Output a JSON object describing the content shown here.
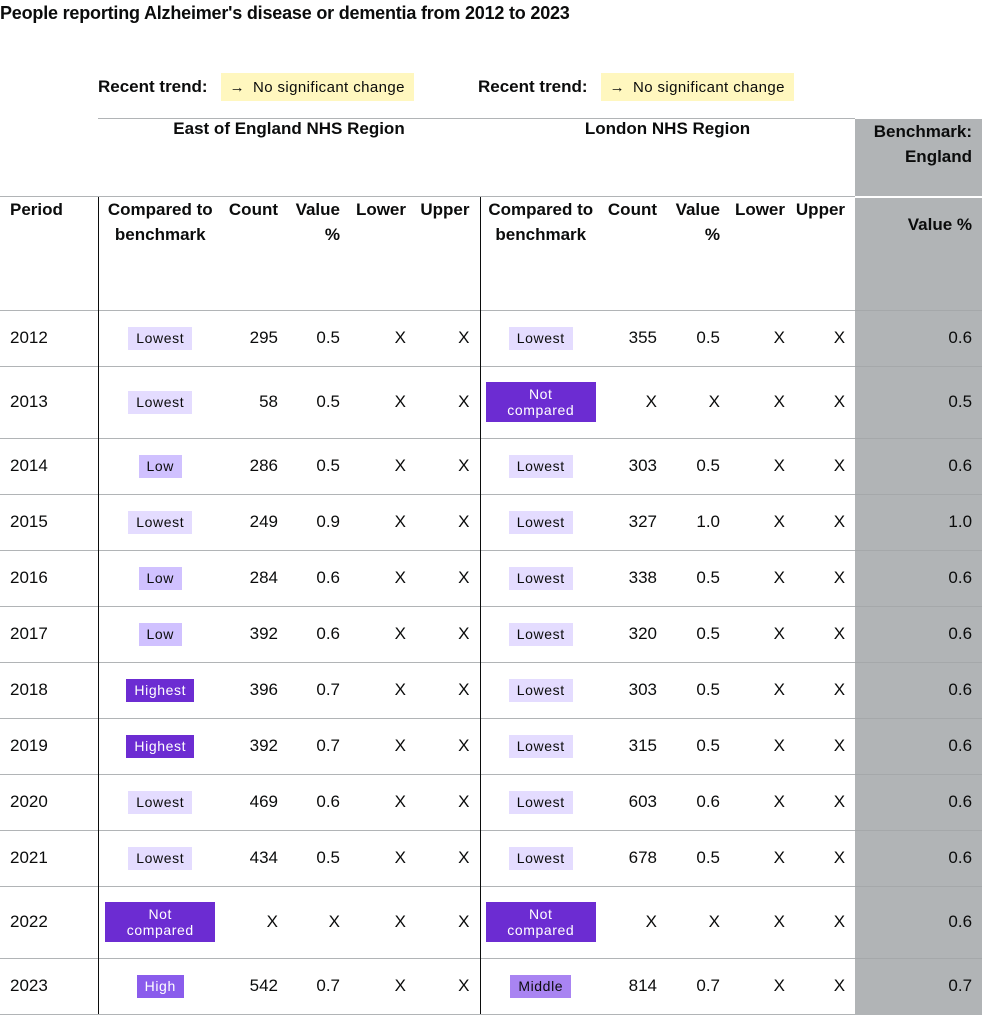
{
  "title": "People reporting Alzheimer's disease or dementia from 2012 to 2023",
  "trends": [
    {
      "label": "Recent trend:",
      "icon": "arrow-right-icon",
      "arrow": "→",
      "value": "No significant change"
    },
    {
      "label": "Recent trend:",
      "icon": "arrow-right-icon",
      "arrow": "→",
      "value": "No significant change"
    }
  ],
  "table": {
    "regions": [
      "East of England NHS Region",
      "London NHS Region"
    ],
    "benchmark_header": "Benchmark: England",
    "columns": {
      "period": "Period",
      "compared": "Compared to benchmark",
      "count": "Count",
      "value": "Value %",
      "lower": "Lower",
      "upper": "Upper",
      "bench_value": "Value %"
    },
    "badge_colors": {
      "Lowest": "#e4dcff",
      "Low": "#d0c1ff",
      "Middle": "#a984f2",
      "High": "#8a5cec",
      "Highest": "#6c2cd2",
      "Not compared": "#6c2cd2"
    },
    "rows": [
      {
        "period": "2012",
        "east": {
          "compared": "Lowest",
          "count": "295",
          "value": "0.5",
          "lower": "X",
          "upper": "X"
        },
        "london": {
          "compared": "Lowest",
          "count": "355",
          "value": "0.5",
          "lower": "X",
          "upper": "X"
        },
        "benchmark": "0.6"
      },
      {
        "period": "2013",
        "east": {
          "compared": "Lowest",
          "count": "58",
          "value": "0.5",
          "lower": "X",
          "upper": "X"
        },
        "london": {
          "compared": "Not compared",
          "count": "X",
          "value": "X",
          "lower": "X",
          "upper": "X"
        },
        "benchmark": "0.5"
      },
      {
        "period": "2014",
        "east": {
          "compared": "Low",
          "count": "286",
          "value": "0.5",
          "lower": "X",
          "upper": "X"
        },
        "london": {
          "compared": "Lowest",
          "count": "303",
          "value": "0.5",
          "lower": "X",
          "upper": "X"
        },
        "benchmark": "0.6"
      },
      {
        "period": "2015",
        "east": {
          "compared": "Lowest",
          "count": "249",
          "value": "0.9",
          "lower": "X",
          "upper": "X"
        },
        "london": {
          "compared": "Lowest",
          "count": "327",
          "value": "1.0",
          "lower": "X",
          "upper": "X"
        },
        "benchmark": "1.0"
      },
      {
        "period": "2016",
        "east": {
          "compared": "Low",
          "count": "284",
          "value": "0.6",
          "lower": "X",
          "upper": "X"
        },
        "london": {
          "compared": "Lowest",
          "count": "338",
          "value": "0.5",
          "lower": "X",
          "upper": "X"
        },
        "benchmark": "0.6"
      },
      {
        "period": "2017",
        "east": {
          "compared": "Low",
          "count": "392",
          "value": "0.6",
          "lower": "X",
          "upper": "X"
        },
        "london": {
          "compared": "Lowest",
          "count": "320",
          "value": "0.5",
          "lower": "X",
          "upper": "X"
        },
        "benchmark": "0.6"
      },
      {
        "period": "2018",
        "east": {
          "compared": "Highest",
          "count": "396",
          "value": "0.7",
          "lower": "X",
          "upper": "X"
        },
        "london": {
          "compared": "Lowest",
          "count": "303",
          "value": "0.5",
          "lower": "X",
          "upper": "X"
        },
        "benchmark": "0.6"
      },
      {
        "period": "2019",
        "east": {
          "compared": "Highest",
          "count": "392",
          "value": "0.7",
          "lower": "X",
          "upper": "X"
        },
        "london": {
          "compared": "Lowest",
          "count": "315",
          "value": "0.5",
          "lower": "X",
          "upper": "X"
        },
        "benchmark": "0.6"
      },
      {
        "period": "2020",
        "east": {
          "compared": "Lowest",
          "count": "469",
          "value": "0.6",
          "lower": "X",
          "upper": "X"
        },
        "london": {
          "compared": "Lowest",
          "count": "603",
          "value": "0.6",
          "lower": "X",
          "upper": "X"
        },
        "benchmark": "0.6"
      },
      {
        "period": "2021",
        "east": {
          "compared": "Lowest",
          "count": "434",
          "value": "0.5",
          "lower": "X",
          "upper": "X"
        },
        "london": {
          "compared": "Lowest",
          "count": "678",
          "value": "0.5",
          "lower": "X",
          "upper": "X"
        },
        "benchmark": "0.6"
      },
      {
        "period": "2022",
        "east": {
          "compared": "Not compared",
          "count": "X",
          "value": "X",
          "lower": "X",
          "upper": "X"
        },
        "london": {
          "compared": "Not compared",
          "count": "X",
          "value": "X",
          "lower": "X",
          "upper": "X"
        },
        "benchmark": "0.6"
      },
      {
        "period": "2023",
        "east": {
          "compared": "High",
          "count": "542",
          "value": "0.7",
          "lower": "X",
          "upper": "X"
        },
        "london": {
          "compared": "Middle",
          "count": "814",
          "value": "0.7",
          "lower": "X",
          "upper": "X"
        },
        "benchmark": "0.7"
      }
    ]
  }
}
